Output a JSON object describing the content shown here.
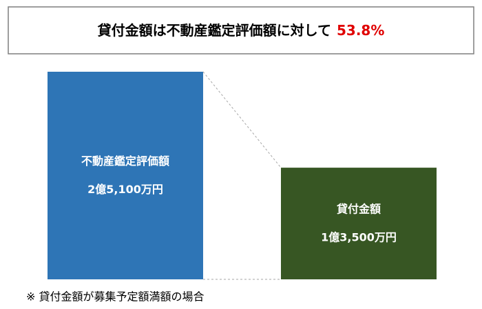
{
  "chart_data": {
    "type": "bar",
    "title": "貸付金額は不動産鑑定評価額に対して",
    "highlight": "53.8%",
    "highlight_color": "#e00000",
    "categories": [
      "不動産鑑定評価額",
      "貸付金額"
    ],
    "values": [
      25100,
      13500
    ],
    "value_labels": [
      "2億5,100万円",
      "1億3,500万円"
    ],
    "colors": [
      "#2e75b6",
      "#375623"
    ],
    "note": "※ 貸付金額が募集予定額満額の場合"
  }
}
